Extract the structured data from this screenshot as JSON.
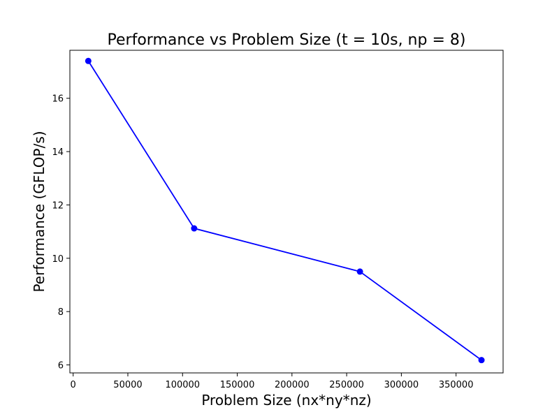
{
  "chart_data": {
    "type": "line",
    "title": "Performance vs Problem Size (t = 10s, np = 8)",
    "xlabel": "Problem Size (nx*ny*nz)",
    "ylabel": "Performance (GFLOP/s)",
    "xlim": [
      -3000,
      393000
    ],
    "ylim": [
      5.7,
      17.8
    ],
    "xticks": [
      0,
      50000,
      100000,
      150000,
      200000,
      250000,
      300000,
      350000
    ],
    "yticks": [
      6,
      8,
      10,
      12,
      14,
      16
    ],
    "grid": false,
    "series": [
      {
        "x": [
          13824,
          110592,
          262144,
          373248
        ],
        "y": [
          17.4,
          11.12,
          9.5,
          6.18
        ],
        "color": "#0000ff",
        "marker": "circle"
      }
    ]
  }
}
